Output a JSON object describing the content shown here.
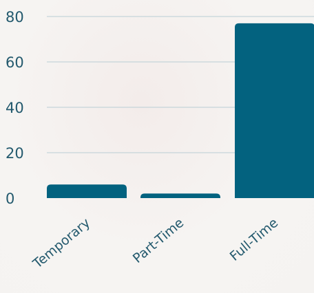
{
  "chart_data": {
    "type": "bar",
    "categories": [
      "Temporary",
      "Part-Time",
      "Full-Time"
    ],
    "values": [
      6,
      2,
      77
    ],
    "title": "",
    "xlabel": "",
    "ylabel": "",
    "ylim": [
      0,
      80
    ],
    "yticks": [
      0,
      20,
      40,
      60,
      80
    ],
    "grid": true,
    "bar_color": "#03627f",
    "text_color": "#245a6e",
    "grid_color": "#b9cdd4"
  }
}
